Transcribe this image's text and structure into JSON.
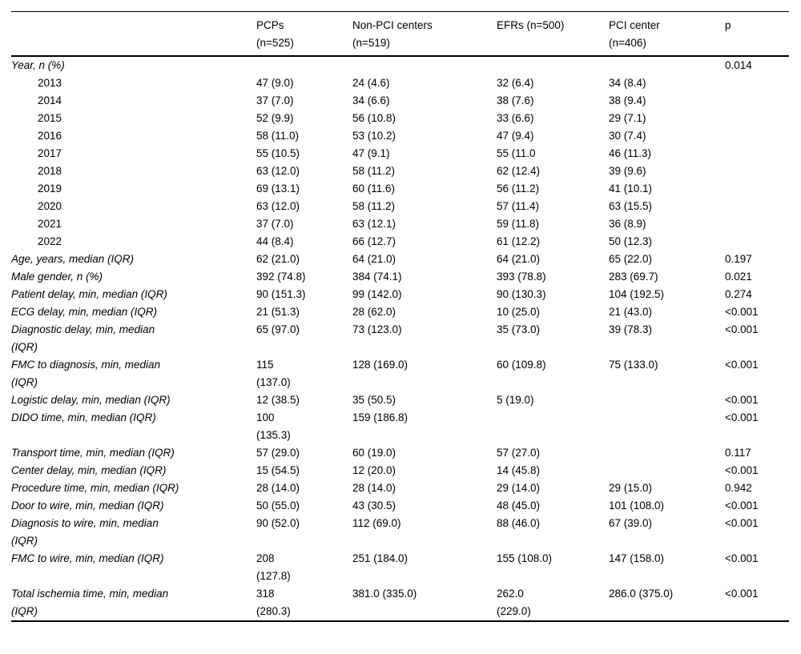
{
  "table": {
    "columns": [
      "",
      "PCPs\n(n=525)",
      "Non-PCI centers\n(n=519)",
      "EFRs (n=500)",
      "PCI center\n(n=406)",
      "p"
    ],
    "rows": [
      {
        "label": "Year, n (%)",
        "style": "section",
        "values": [
          "",
          "",
          "",
          "",
          "0.014"
        ]
      },
      {
        "label": "2013",
        "style": "indent",
        "values": [
          "47 (9.0)",
          "24 (4.6)",
          "32 (6.4)",
          "34 (8.4)",
          ""
        ]
      },
      {
        "label": "2014",
        "style": "indent",
        "values": [
          "37 (7.0)",
          "34 (6.6)",
          "38 (7.6)",
          "38 (9.4)",
          ""
        ]
      },
      {
        "label": "2015",
        "style": "indent",
        "values": [
          "52 (9.9)",
          "56 (10.8)",
          "33 (6.6)",
          "29 (7.1)",
          ""
        ]
      },
      {
        "label": "2016",
        "style": "indent",
        "values": [
          "58 (11.0)",
          "53 (10.2)",
          "47 (9.4)",
          "30 (7.4)",
          ""
        ]
      },
      {
        "label": "2017",
        "style": "indent",
        "values": [
          "55 (10.5)",
          "47 (9.1)",
          "55 (11.0",
          "46 (11.3)",
          ""
        ]
      },
      {
        "label": "2018",
        "style": "indent",
        "values": [
          "63 (12.0)",
          "58 (11.2)",
          "62 (12.4)",
          "39 (9.6)",
          ""
        ]
      },
      {
        "label": "2019",
        "style": "indent",
        "values": [
          "69 (13.1)",
          "60 (11.6)",
          "56 (11.2)",
          "41 (10.1)",
          ""
        ]
      },
      {
        "label": "2020",
        "style": "indent",
        "values": [
          "63 (12.0)",
          "58 (11.2)",
          "57 (11.4)",
          "63 (15.5)",
          ""
        ]
      },
      {
        "label": "2021",
        "style": "indent",
        "values": [
          "37 (7.0)",
          "63 (12.1)",
          "59 (11.8)",
          "36 (8.9)",
          ""
        ]
      },
      {
        "label": "2022",
        "style": "indent",
        "values": [
          "44 (8.4)",
          "66 (12.7)",
          "61 (12.2)",
          "50 (12.3)",
          ""
        ]
      },
      {
        "label": "Age, years, median (IQR)",
        "style": "section",
        "values": [
          "62 (21.0)",
          "64 (21.0)",
          "64 (21.0)",
          "65 (22.0)",
          "0.197"
        ]
      },
      {
        "label": "Male gender, n (%)",
        "style": "section",
        "values": [
          "392 (74.8)",
          "384 (74.1)",
          "393 (78.8)",
          "283 (69.7)",
          "0.021"
        ]
      },
      {
        "label": "Patient delay, min, median (IQR)",
        "style": "section",
        "values": [
          "90 (151.3)",
          "99 (142.0)",
          "90 (130.3)",
          "104 (192.5)",
          "0.274"
        ]
      },
      {
        "label": "ECG delay, min, median (IQR)",
        "style": "section",
        "values": [
          "21 (51.3)",
          "28 (62.0)",
          "10 (25.0)",
          "21 (43.0)",
          "<0.001"
        ]
      },
      {
        "label": "Diagnostic delay, min, median\n(IQR)",
        "style": "section",
        "values": [
          "65 (97.0)",
          "73 (123.0)",
          "35 (73.0)",
          "39 (78.3)",
          "<0.001"
        ]
      },
      {
        "label": "FMC to diagnosis, min, median\n(IQR)",
        "style": "section",
        "values": [
          "115\n(137.0)",
          "128 (169.0)",
          "60 (109.8)",
          "75 (133.0)",
          "<0.001"
        ]
      },
      {
        "label": "Logistic delay, min, median (IQR)",
        "style": "section",
        "values": [
          "12 (38.5)",
          "35 (50.5)",
          "5 (19.0)",
          "",
          "<0.001"
        ]
      },
      {
        "label": "DIDO time, min, median (IQR)",
        "style": "section",
        "values": [
          "100\n(135.3)",
          "159 (186.8)",
          "",
          "",
          "<0.001"
        ]
      },
      {
        "label": "Transport time, min, median (IQR)",
        "style": "section",
        "values": [
          "57 (29.0)",
          "60 (19.0)",
          "57 (27.0)",
          "",
          "0.117"
        ]
      },
      {
        "label": "Center delay, min, median (IQR)",
        "style": "section",
        "values": [
          "15 (54.5)",
          "12 (20.0)",
          "14 (45.8)",
          "",
          "<0.001"
        ]
      },
      {
        "label": "Procedure time, min, median (IQR)",
        "style": "section",
        "values": [
          "28 (14.0)",
          "28 (14.0)",
          "29 (14.0)",
          "29 (15.0)",
          "0.942"
        ]
      },
      {
        "label": "Door to wire, min, median (IQR)",
        "style": "section",
        "values": [
          "50 (55.0)",
          "43 (30.5)",
          "48 (45.0)",
          "101 (108.0)",
          "<0.001"
        ]
      },
      {
        "label": "Diagnosis to wire, min, median\n(IQR)",
        "style": "section",
        "values": [
          "90 (52.0)",
          "112 (69.0)",
          "88 (46.0)",
          "67 (39.0)",
          "<0.001"
        ]
      },
      {
        "label": "FMC to wire, min, median (IQR)",
        "style": "section",
        "values": [
          "208\n(127.8)",
          "251 (184.0)",
          "155 (108.0)",
          "147 (158.0)",
          "<0.001"
        ]
      },
      {
        "label": "Total ischemia time, min, median\n(IQR)",
        "style": "section",
        "values": [
          "318\n(280.3)",
          "381.0 (335.0)",
          "262.0\n(229.0)",
          "286.0 (375.0)",
          "<0.001"
        ]
      }
    ]
  }
}
